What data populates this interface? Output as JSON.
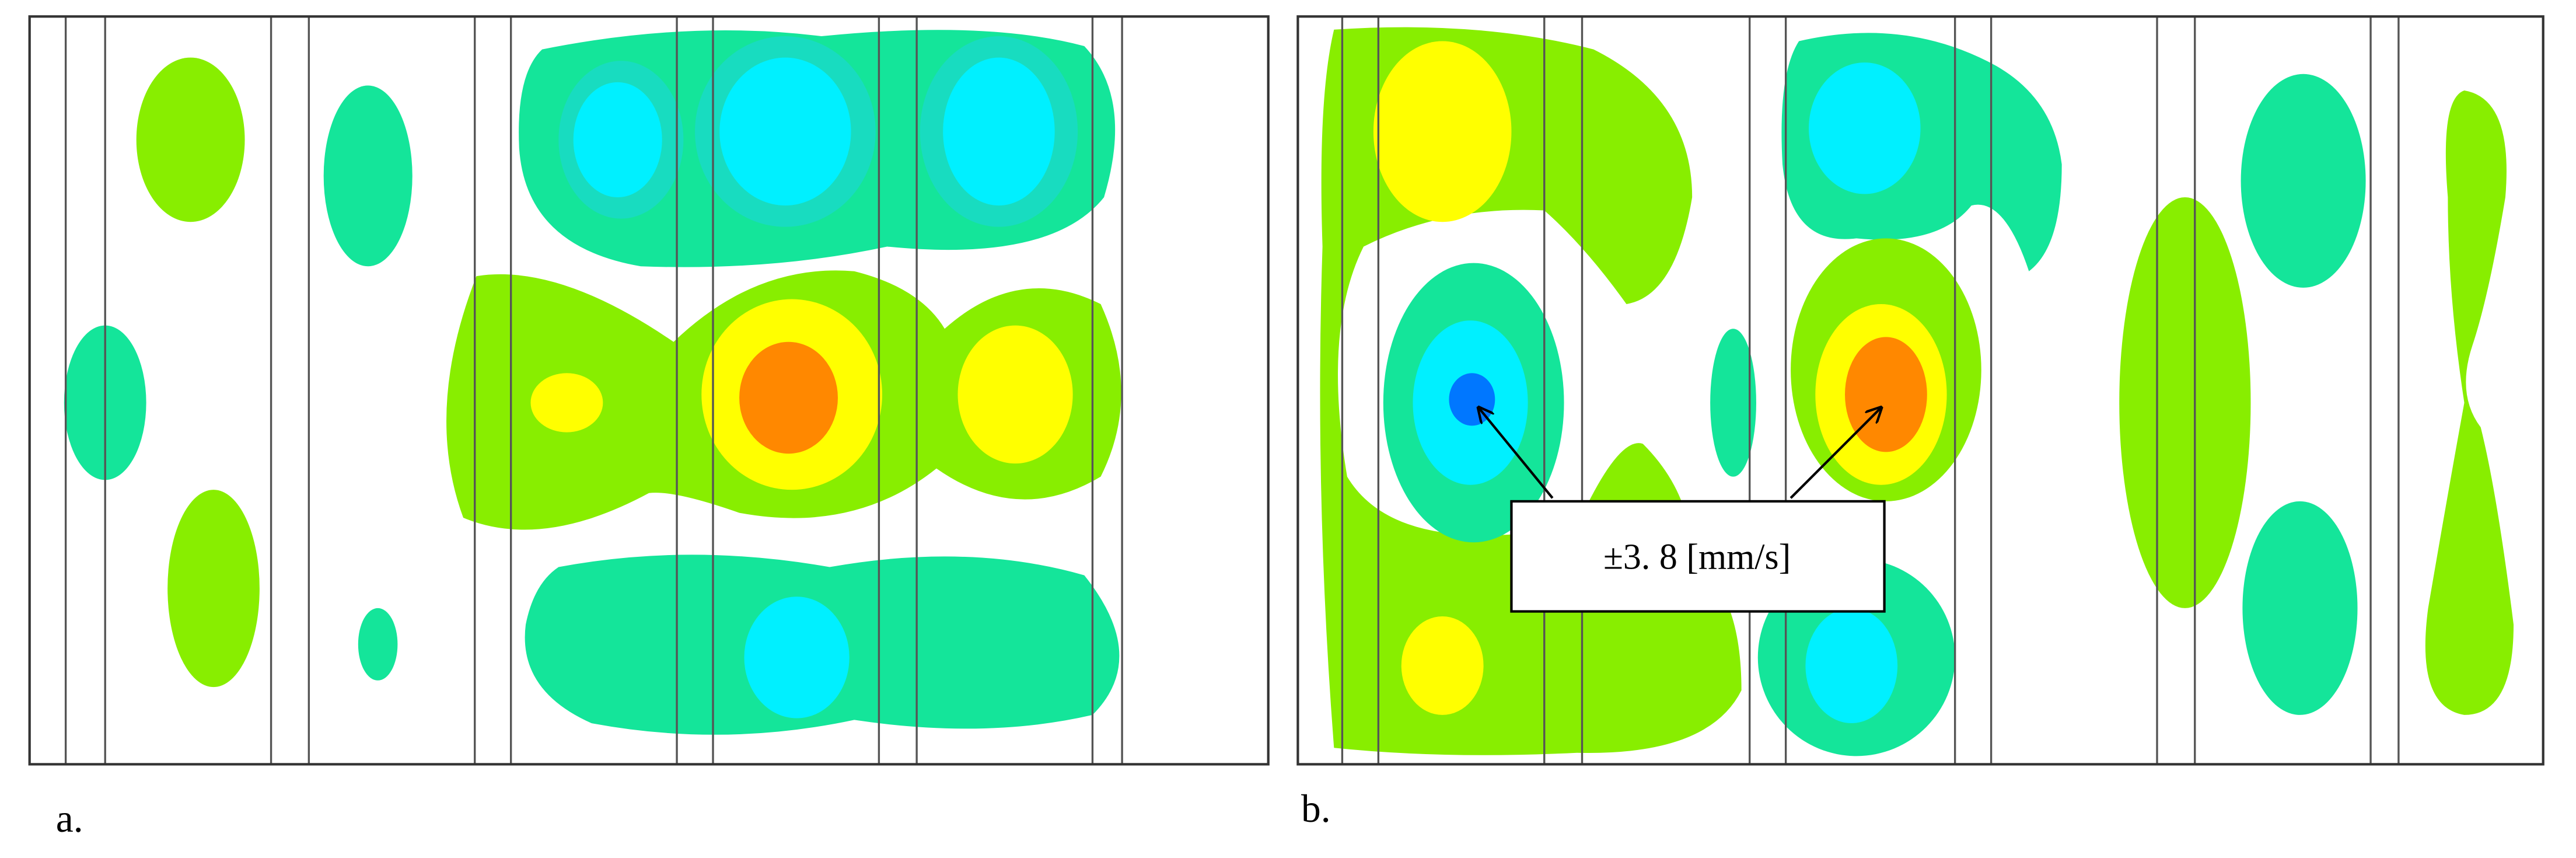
{
  "panels": [
    {
      "label": "a."
    },
    {
      "label": "b.",
      "annotation": "±3. 8 [mm/s]"
    }
  ]
}
